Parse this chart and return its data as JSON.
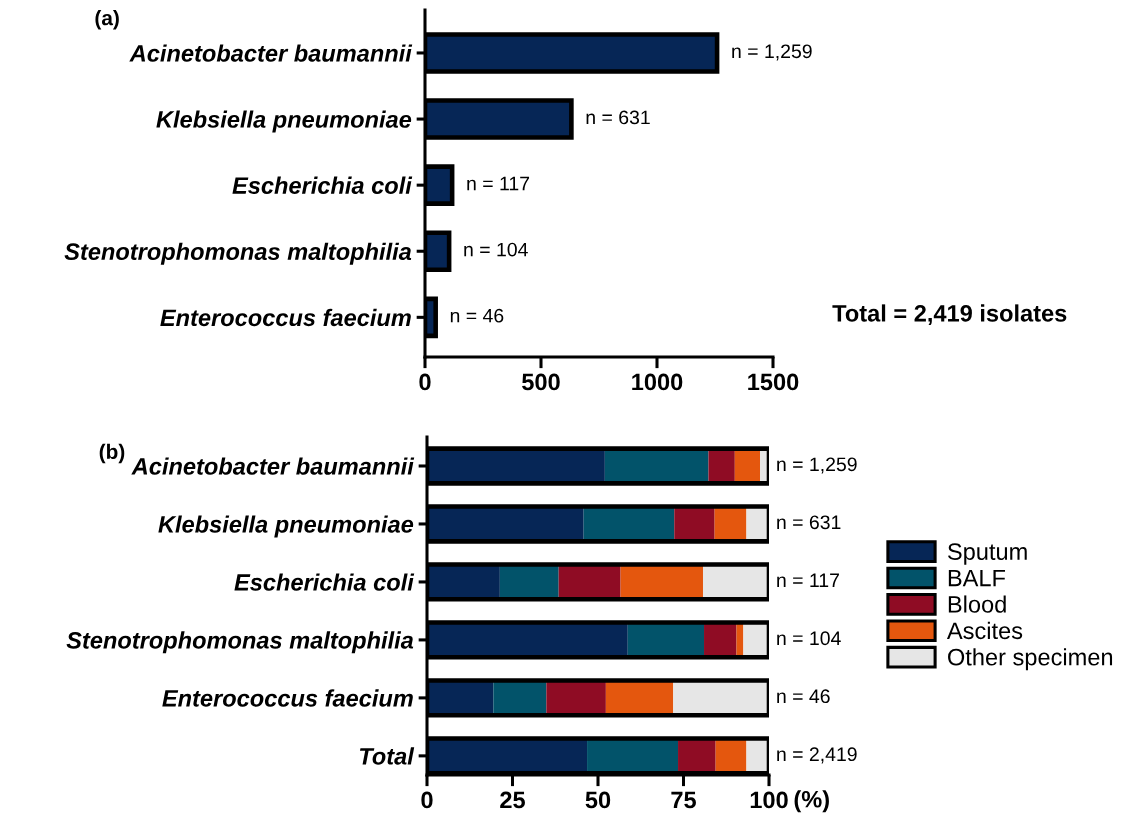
{
  "chart_data": [
    {
      "type": "bar",
      "orientation": "horizontal",
      "title": "(a)",
      "categories": [
        "Acinetobacter baumannii",
        "Klebsiella pneumoniae",
        "Escherichia coli",
        "Stenotrophomonas maltophilia",
        "Enterococcus faecium"
      ],
      "values": [
        1259,
        631,
        117,
        104,
        46
      ],
      "color": "#062656",
      "value_labels": [
        "n = 1,259",
        "n = 631",
        "n = 117",
        "n = 104",
        "n = 46"
      ],
      "xlim": [
        0,
        1500
      ],
      "xticks": [
        0,
        500,
        1000,
        1500
      ],
      "grid": false,
      "legend": false,
      "annotations": [
        "Total = 2,419 isolates"
      ]
    },
    {
      "type": "bar",
      "orientation": "horizontal",
      "stacked": true,
      "title": "(b)",
      "xlabel": "(%)",
      "categories": [
        "Acinetobacter baumannii",
        "Klebsiella pneumoniae",
        "Escherichia coli",
        "Stenotrophomonas maltophilia",
        "Enterococcus faecium",
        "Total"
      ],
      "series": [
        {
          "name": "Sputum",
          "color": "#062656",
          "values": [
            52.0,
            45.8,
            21.3,
            58.7,
            19.4,
            46.8
          ]
        },
        {
          "name": "BALF",
          "color": "#02536a",
          "values": [
            30.3,
            26.5,
            17.2,
            22.3,
            15.5,
            26.6
          ]
        },
        {
          "name": "Blood",
          "color": "#8f0c24",
          "values": [
            7.7,
            11.8,
            18.1,
            9.5,
            17.4,
            11.0
          ]
        },
        {
          "name": "Ascites",
          "color": "#e4570e",
          "values": [
            7.4,
            9.3,
            24.1,
            2.0,
            19.7,
            9.0
          ]
        },
        {
          "name": "Other specimen",
          "color": "#e6e6e6",
          "values": [
            2.6,
            6.6,
            19.3,
            7.5,
            28.0,
            6.6
          ]
        }
      ],
      "xlim": [
        0,
        100
      ],
      "xticks": [
        0,
        25,
        50,
        75,
        100
      ],
      "grid": false,
      "legend": "right",
      "annotations": [
        "n = 1,259",
        "n = 631",
        "n = 117",
        "n = 104",
        "n = 46",
        "n = 2,419"
      ]
    }
  ]
}
